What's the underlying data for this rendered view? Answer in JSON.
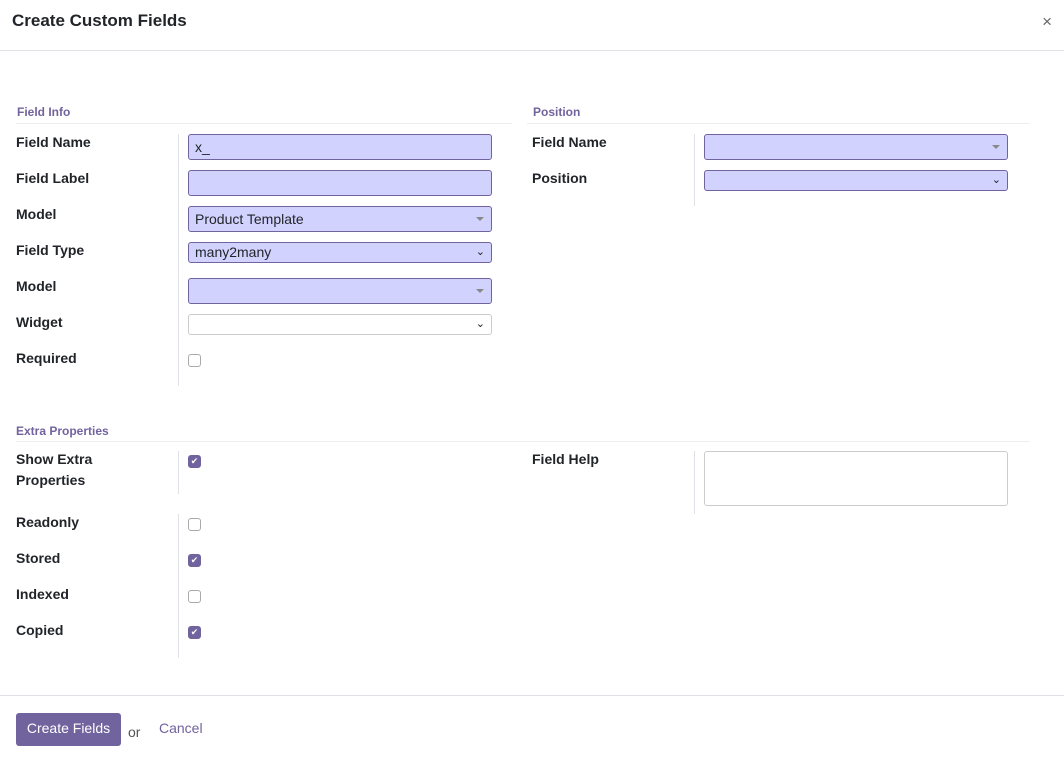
{
  "dialog": {
    "title": "Create Custom Fields",
    "close": "×"
  },
  "field_info": {
    "title": "Field Info",
    "field_name_label": "Field Name",
    "field_name_value": "x_",
    "field_label_label": "Field Label",
    "field_label_value": "",
    "model_label": "Model",
    "model_value": "Product Template",
    "field_type_label": "Field Type",
    "field_type_value": "many2many",
    "relation_model_label": "Model",
    "relation_model_value": "",
    "widget_label": "Widget",
    "widget_value": "",
    "required_label": "Required",
    "required_checked": false
  },
  "position": {
    "title": "Position",
    "field_name_label": "Field Name",
    "field_name_value": "",
    "position_label": "Position",
    "position_value": ""
  },
  "extra": {
    "title": "Extra Properties",
    "show_extra_label": "Show Extra Properties",
    "show_extra_checked": true,
    "field_help_label": "Field Help",
    "field_help_value": "",
    "readonly_label": "Readonly",
    "readonly_checked": false,
    "stored_label": "Stored",
    "stored_checked": true,
    "indexed_label": "Indexed",
    "indexed_checked": false,
    "copied_label": "Copied",
    "copied_checked": true
  },
  "footer": {
    "create": "Create Fields",
    "or": "or",
    "cancel": "Cancel"
  },
  "colors": {
    "accent": "#71639e",
    "input_fill": "#d2d2ff"
  },
  "check_glyph": "✔"
}
